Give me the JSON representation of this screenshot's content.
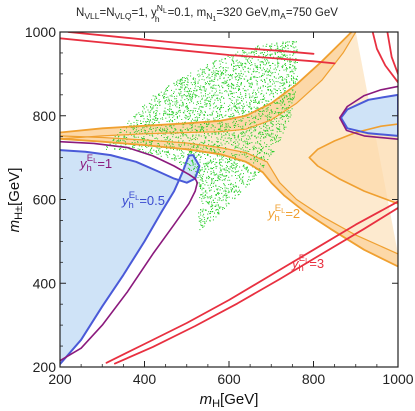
{
  "chart_data": {
    "type": "contour",
    "title": "N_VLL=N_VLQ=1, y_h^{N_L}=0.1, m_{N_1}=320 GeV, m_A=750 GeV",
    "title_parts": {
      "p1": "N",
      "p1_sub": "VLL",
      "p2": "=N",
      "p2_sub": "VLQ",
      "p3": "=1, y",
      "p3_sub": "h",
      "p3_sup": "N",
      "p3_sup_sub": "L",
      "p4": "=0.1, m",
      "p4_sub": "N",
      "p4_sub_sub": "1",
      "p5": "=320 GeV,m",
      "p5_sub": "A",
      "p6": "=750 GeV"
    },
    "xlabel": "m_H[GeV]",
    "xlabel_parts": {
      "base": "m",
      "sub": "H",
      "unit": "[GeV]"
    },
    "ylabel": "m_{H±}[GeV]",
    "ylabel_parts": {
      "base": "m",
      "sub": "H±",
      "unit": "[GeV]"
    },
    "xlim": [
      200,
      1000
    ],
    "ylim": [
      200,
      1000
    ],
    "xticks": [
      "200",
      "400",
      "600",
      "800",
      "1000"
    ],
    "yticks": [
      "200",
      "400",
      "600",
      "800",
      "1000"
    ],
    "grid": false,
    "series": [
      {
        "name": "y_h^{E_L}=0.5",
        "label_parts": {
          "base": "y",
          "sub": "h",
          "sup": "E",
          "sup_sub": "L",
          "value": "=0.5"
        },
        "color": "#4a5ad8",
        "fill": "#cfe3f7",
        "lower": [
          [
            200,
            207
          ],
          [
            250,
            265
          ],
          [
            300,
            345
          ],
          [
            350,
            420
          ],
          [
            400,
            500
          ],
          [
            440,
            570
          ],
          [
            470,
            620
          ],
          [
            490,
            665
          ],
          [
            500,
            692
          ],
          [
            505,
            705
          ]
        ],
        "upper": [
          [
            200,
            718
          ],
          [
            260,
            714
          ],
          [
            320,
            706
          ],
          [
            380,
            690
          ],
          [
            430,
            668
          ],
          [
            470,
            650
          ],
          [
            500,
            640
          ],
          [
            520,
            650
          ],
          [
            530,
            680
          ],
          [
            515,
            706
          ],
          [
            505,
            705
          ]
        ],
        "island": [
          [
            1000,
            850
          ],
          [
            930,
            838
          ],
          [
            880,
            815
          ],
          [
            865,
            795
          ],
          [
            880,
            770
          ],
          [
            930,
            758
          ],
          [
            1000,
            752
          ]
        ]
      },
      {
        "name": "y_h^{E_L}=1",
        "label_parts": {
          "base": "y",
          "sub": "h",
          "sup": "E",
          "sup_sub": "L",
          "value": "=1"
        },
        "color": "#8b1a7d",
        "curves": [
          [
            [
              200,
              738
            ],
            [
              280,
              734
            ],
            [
              360,
              724
            ],
            [
              420,
              704
            ],
            [
              470,
              680
            ],
            [
              505,
              660
            ],
            [
              520,
              650
            ],
            [
              525,
              640
            ],
            [
              520,
              620
            ],
            [
              505,
              590
            ],
            [
              470,
              540
            ],
            [
              420,
              470
            ],
            [
              360,
              380
            ],
            [
              300,
              300
            ],
            [
              250,
              245
            ],
            [
              200,
              215
            ]
          ],
          [
            [
              1000,
              870
            ],
            [
              960,
              862
            ],
            [
              920,
              848
            ],
            [
              880,
              822
            ],
            [
              862,
              795
            ],
            [
              878,
              765
            ],
            [
              920,
              752
            ],
            [
              1000,
              744
            ]
          ]
        ]
      },
      {
        "name": "y_h^{E_L}=2",
        "label_parts": {
          "base": "y",
          "sub": "h",
          "sup": "E",
          "sup_sub": "L",
          "value": "=2"
        },
        "color": "#f0a030",
        "fill": "#fcd8a8",
        "upper": [
          [
            200,
            760
          ],
          [
            300,
            770
          ],
          [
            400,
            776
          ],
          [
            500,
            782
          ],
          [
            580,
            788
          ],
          [
            640,
            800
          ],
          [
            700,
            830
          ],
          [
            760,
            875
          ],
          [
            820,
            930
          ],
          [
            870,
            980
          ],
          [
            890,
            1000
          ]
        ],
        "upper_inner": [
          [
            200,
            745
          ],
          [
            300,
            752
          ],
          [
            400,
            757
          ],
          [
            500,
            760
          ],
          [
            580,
            762
          ],
          [
            640,
            768
          ],
          [
            700,
            790
          ],
          [
            760,
            830
          ],
          [
            820,
            885
          ],
          [
            870,
            950
          ],
          [
            900,
            1000
          ]
        ],
        "lower": [
          [
            200,
            745
          ],
          [
            300,
            738
          ],
          [
            400,
            730
          ],
          [
            500,
            720
          ],
          [
            580,
            708
          ],
          [
            640,
            690
          ],
          [
            680,
            665
          ],
          [
            700,
            640
          ],
          [
            730,
            610
          ],
          [
            780,
            570
          ],
          [
            840,
            530
          ],
          [
            920,
            480
          ],
          [
            1000,
            440
          ]
        ],
        "lower_inner": [
          [
            200,
            752
          ],
          [
            300,
            748
          ],
          [
            400,
            742
          ],
          [
            500,
            735
          ],
          [
            580,
            724
          ],
          [
            640,
            712
          ],
          [
            690,
            690
          ],
          [
            720,
            640
          ],
          [
            760,
            600
          ],
          [
            820,
            560
          ],
          [
            900,
            515
          ],
          [
            1000,
            470
          ]
        ],
        "rightwing": [
          [
            1000,
            780
          ],
          [
            960,
            775
          ],
          [
            900,
            760
          ],
          [
            850,
            740
          ],
          [
            810,
            720
          ],
          [
            790,
            700
          ],
          [
            810,
            680
          ],
          [
            860,
            650
          ],
          [
            920,
            620
          ],
          [
            1000,
            590
          ]
        ]
      },
      {
        "name": "y_h^{E_L}=3",
        "label_parts": {
          "base": "y",
          "sub": "h",
          "sup": "E",
          "sup_sub": "L",
          "value": "=3"
        },
        "color": "#e83040",
        "curves": [
          [
            [
              310,
              210
            ],
            [
              400,
              255
            ],
            [
              500,
              305
            ],
            [
              600,
              360
            ],
            [
              700,
              420
            ],
            [
              800,
              480
            ],
            [
              900,
              540
            ],
            [
              1000,
              595
            ]
          ],
          [
            [
              330,
              208
            ],
            [
              420,
              248
            ],
            [
              520,
              298
            ],
            [
              620,
              352
            ],
            [
              720,
              410
            ],
            [
              820,
              470
            ],
            [
              920,
              530
            ],
            [
              1000,
              580
            ]
          ],
          [
            [
              200,
              985
            ],
            [
              300,
              975
            ],
            [
              400,
              965
            ],
            [
              500,
              955
            ],
            [
              600,
              945
            ],
            [
              700,
              938
            ],
            [
              800,
              930
            ],
            [
              850,
              925
            ]
          ],
          [
            [
              220,
              1000
            ],
            [
              320,
              990
            ],
            [
              420,
              980
            ],
            [
              520,
              970
            ],
            [
              620,
              962
            ],
            [
              720,
              955
            ],
            [
              800,
              948
            ]
          ],
          [
            [
              1000,
              880
            ],
            [
              970,
              920
            ],
            [
              950,
              960
            ],
            [
              940,
              1000
            ]
          ],
          [
            [
              1000,
              900
            ],
            [
              985,
              940
            ],
            [
              975,
              1000
            ]
          ]
        ]
      }
    ],
    "allowed_region": {
      "color": "#22cc22",
      "boundary": [
        [
          300,
          720
        ],
        [
          360,
          790
        ],
        [
          420,
          850
        ],
        [
          500,
          900
        ],
        [
          580,
          940
        ],
        [
          650,
          965
        ],
        [
          700,
          975
        ],
        [
          760,
          980
        ],
        [
          762,
          940
        ],
        [
          760,
          870
        ],
        [
          745,
          800
        ],
        [
          720,
          740
        ],
        [
          690,
          690
        ],
        [
          650,
          640
        ],
        [
          600,
          590
        ],
        [
          560,
          550
        ],
        [
          530,
          525
        ],
        [
          525,
          560
        ],
        [
          530,
          620
        ],
        [
          515,
          660
        ],
        [
          480,
          690
        ],
        [
          420,
          710
        ],
        [
          360,
          720
        ]
      ]
    }
  }
}
